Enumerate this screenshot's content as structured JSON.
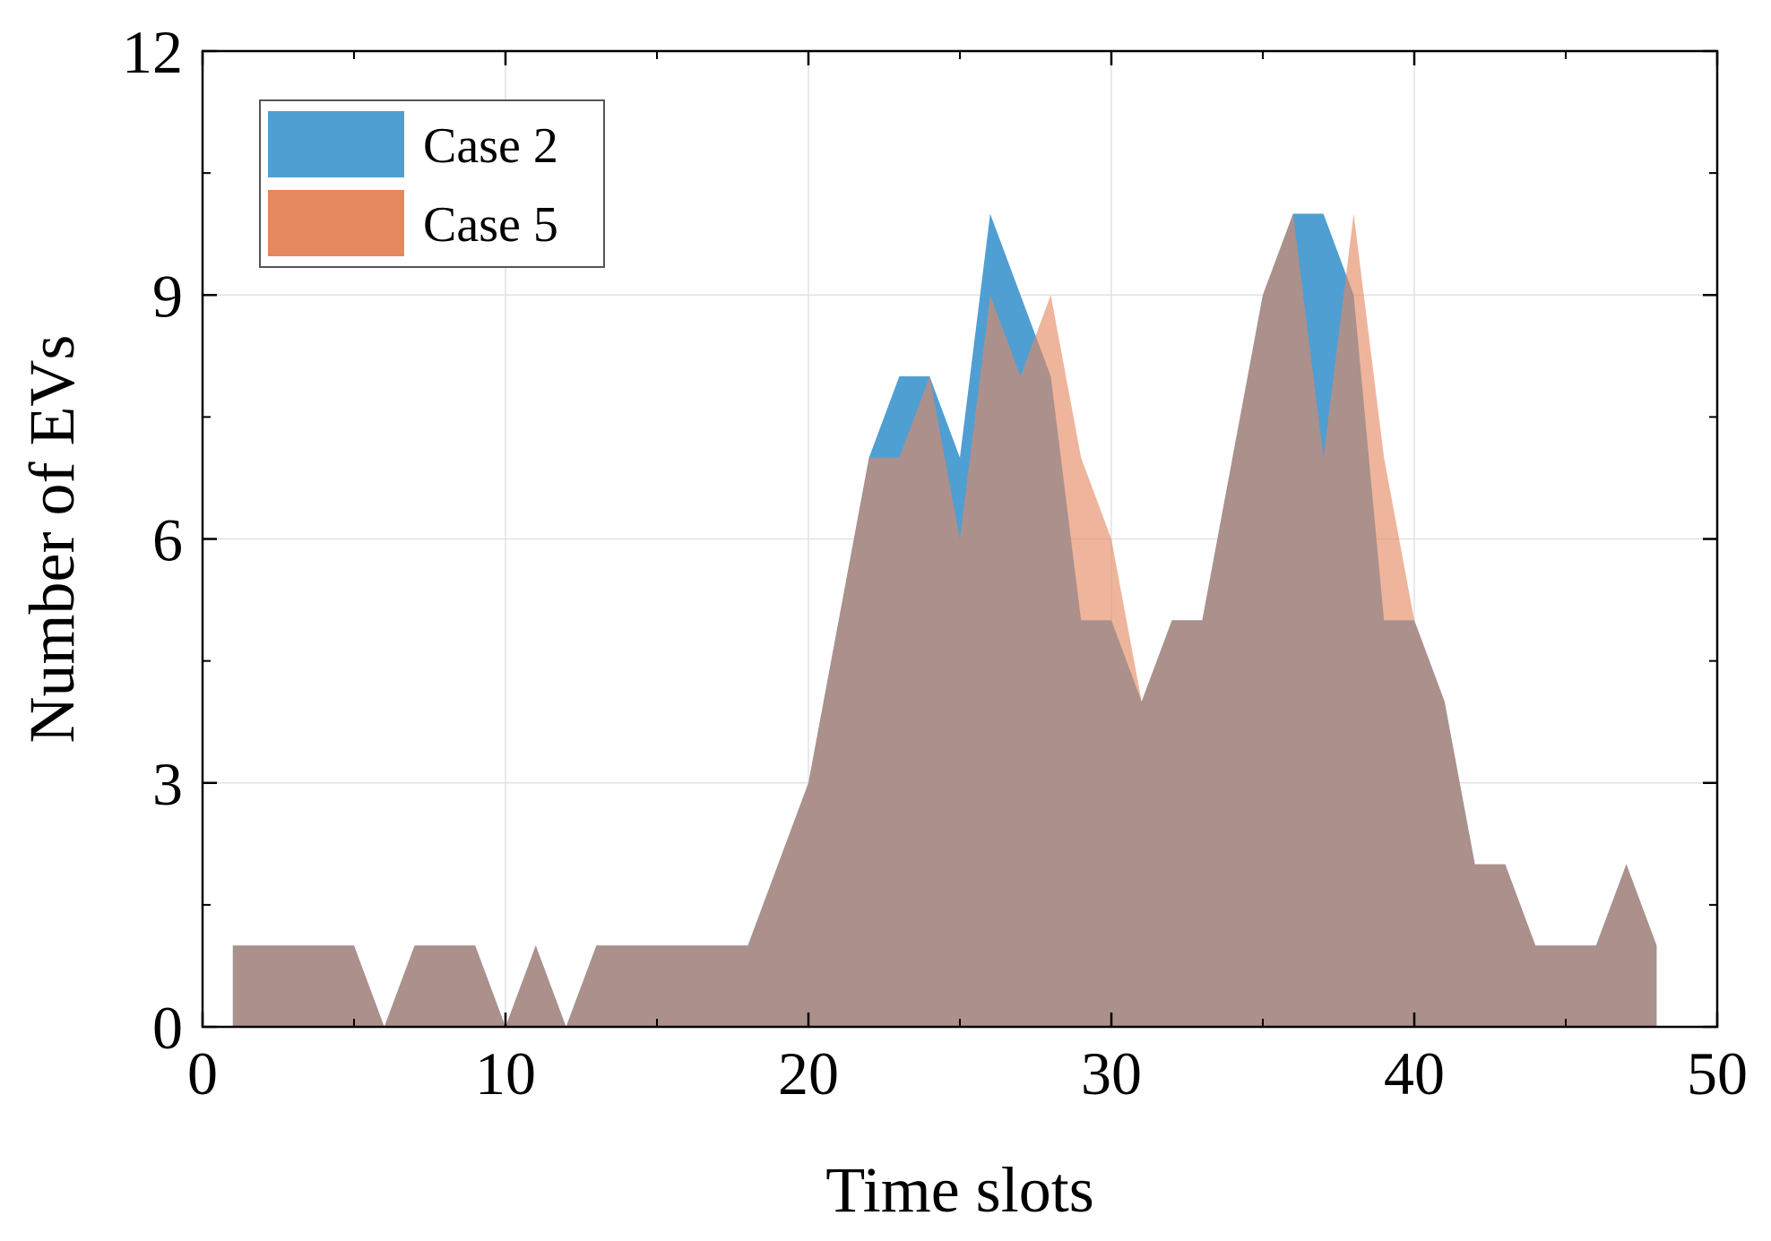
{
  "chart_data": {
    "type": "area",
    "title": "",
    "xlabel": "Time slots",
    "ylabel": "Number of EVs",
    "xlim": [
      0,
      50
    ],
    "ylim": [
      0,
      12
    ],
    "xticks": [
      0,
      10,
      20,
      30,
      40,
      50
    ],
    "yticks": [
      0,
      3,
      6,
      9,
      12
    ],
    "xtick_labels": [
      "0",
      "10",
      "20",
      "30",
      "40",
      "50"
    ],
    "ytick_labels": [
      "0",
      "3",
      "6",
      "9",
      "12"
    ],
    "grid": true,
    "legend_position": "top-left",
    "x": [
      1,
      2,
      3,
      4,
      5,
      6,
      7,
      8,
      9,
      10,
      11,
      12,
      13,
      14,
      15,
      16,
      17,
      18,
      19,
      20,
      21,
      22,
      23,
      24,
      25,
      26,
      27,
      28,
      29,
      30,
      31,
      32,
      33,
      34,
      35,
      36,
      37,
      38,
      39,
      40,
      41,
      42,
      43,
      44,
      45,
      46,
      47,
      48
    ],
    "series": [
      {
        "name": "Case 2",
        "color": "#4f9fd3",
        "opacity": 1.0,
        "values": [
          1,
          1,
          1,
          1,
          1,
          0,
          1,
          1,
          1,
          0,
          1,
          0,
          1,
          1,
          1,
          1,
          1,
          1,
          2,
          3,
          5,
          7,
          8,
          8,
          7,
          10,
          9,
          8,
          5,
          5,
          4,
          5,
          5,
          7,
          9,
          10,
          10,
          9,
          5,
          5,
          4,
          2,
          2,
          1,
          1,
          1,
          2,
          1
        ]
      },
      {
        "name": "Case 5",
        "color": "#e3885f",
        "opacity": 0.62,
        "values": [
          1,
          1,
          1,
          1,
          1,
          0,
          1,
          1,
          1,
          0,
          1,
          0,
          1,
          1,
          1,
          1,
          1,
          1,
          2,
          3,
          5,
          7,
          7,
          8,
          6,
          9,
          8,
          9,
          7,
          6,
          4,
          5,
          5,
          7,
          9,
          10,
          7,
          10,
          7,
          5,
          4,
          2,
          2,
          1,
          1,
          1,
          2,
          1
        ]
      }
    ]
  }
}
